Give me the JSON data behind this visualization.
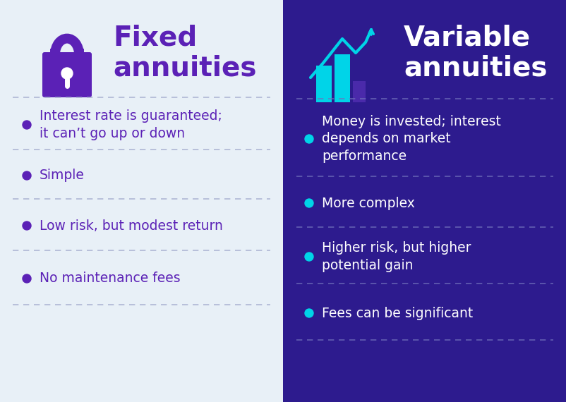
{
  "left_bg": "#e8f0f7",
  "right_bg": "#2d1b8e",
  "left_title": "Fixed\nannuities",
  "right_title": "Variable\nannuities",
  "left_title_color": "#5b21b6",
  "right_title_color": "#ffffff",
  "bullet_color_left": "#5b21b6",
  "bullet_color_right": "#00d4e8",
  "left_items": [
    "Interest rate is guaranteed;\nit can’t go up or down",
    "Simple",
    "Low risk, but modest return",
    "No maintenance fees"
  ],
  "right_items": [
    "Money is invested; interest\ndepends on market\nperformance",
    "More complex",
    "Higher risk, but higher\npotential gain",
    "Fees can be significant"
  ],
  "left_text_color": "#5b21b6",
  "right_text_color": "#ffffff",
  "divider_color_left": "#a0a8cc",
  "divider_color_right": "#7070bb",
  "icon_lock_color": "#5b21b6",
  "icon_lock_body_color": "#4a15a0",
  "icon_chart_color_cyan": "#00d4e8",
  "icon_chart_color_purple": "#4a2aaa",
  "figsize": [
    8.02,
    5.7
  ],
  "dpi": 100
}
